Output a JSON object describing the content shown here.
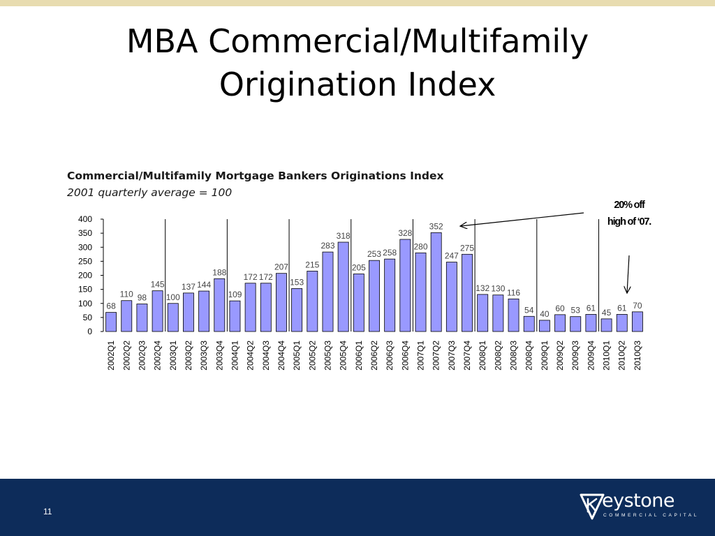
{
  "slide": {
    "title_line1": "MBA Commercial/Multifamily",
    "title_line2": "Origination Index",
    "page_number": "11"
  },
  "annotation": {
    "line1": "20% off",
    "line2": "high of ‘07."
  },
  "logo": {
    "name": "eystone",
    "tagline": "COMMERCIAL CAPITAL"
  },
  "colors": {
    "bar_fill": "#9999ff",
    "bar_stroke": "#000000",
    "footer": "#0d2c5a",
    "top_stripe": "#e8dcb0"
  },
  "chart_data": {
    "type": "bar",
    "title": "Commercial/Multifamily Mortgage Bankers Originations Index",
    "subtitle": "2001 quarterly average = 100",
    "ylim": [
      0,
      400
    ],
    "yticks": [
      "0",
      "50",
      "100",
      "150",
      "200",
      "250",
      "300",
      "350",
      "400"
    ],
    "grid": false,
    "year_separators_after": [
      "2002Q4",
      "2003Q4",
      "2004Q4",
      "2005Q4",
      "2006Q4",
      "2007Q4",
      "2008Q4",
      "2009Q4"
    ],
    "categories": [
      "2002Q1",
      "2002Q2",
      "2002Q3",
      "2002Q4",
      "2003Q1",
      "2003Q2",
      "2003Q3",
      "2003Q4",
      "2004Q1",
      "2004Q2",
      "2004Q3",
      "2004Q4",
      "2005Q1",
      "2005Q2",
      "2005Q3",
      "2005Q4",
      "2006Q1",
      "2006Q2",
      "2006Q3",
      "2006Q4",
      "2007Q1",
      "2007Q2",
      "2007Q3",
      "2007Q4",
      "2008Q1",
      "2008Q2",
      "2008Q3",
      "2008Q4",
      "2009Q1",
      "2009Q2",
      "2009Q3",
      "2009Q4",
      "2010Q1",
      "2010Q2",
      "2010Q3"
    ],
    "values": [
      68,
      110,
      98,
      145,
      100,
      137,
      144,
      188,
      109,
      172,
      172,
      207,
      153,
      215,
      283,
      318,
      205,
      253,
      258,
      328,
      280,
      352,
      247,
      275,
      132,
      130,
      116,
      54,
      40,
      60,
      53,
      61,
      45,
      61,
      70
    ]
  }
}
